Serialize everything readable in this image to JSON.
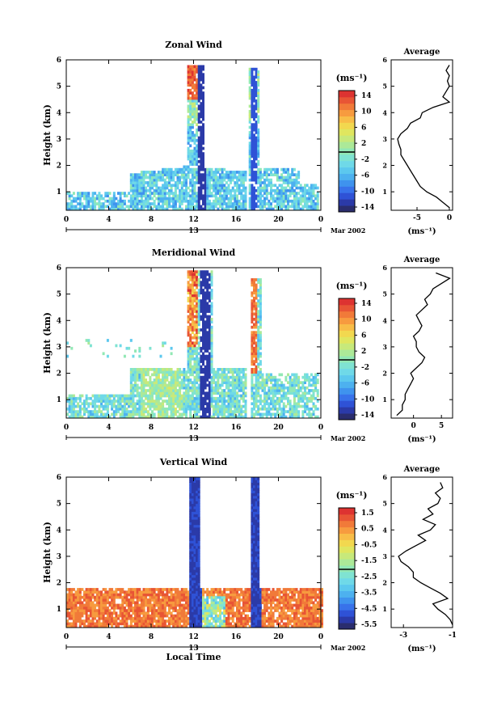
{
  "colormap": [
    "#2a2d6e",
    "#2b3aa8",
    "#2f52d6",
    "#3872ea",
    "#3f93ee",
    "#4db1ef",
    "#5cc8ee",
    "#6fd9e8",
    "#7fe3d2",
    "#92e8b5",
    "#ace998",
    "#c7e97b",
    "#e0e65f",
    "#f2d84f",
    "#f8bd48",
    "#f79b3f",
    "#f17a39",
    "#e85535",
    "#dd3331"
  ],
  "date_label": "Mar 2002",
  "day_label": "13",
  "xlabel": "Local Time",
  "colorbar_unit": "(ms⁻¹)",
  "avg_unit": "(ms⁻¹)",
  "avg_title": "Average",
  "chart_data": [
    {
      "type": "heatmap",
      "title": "Zonal Wind",
      "ylabel": "Height (km)",
      "x_ticks": [
        "0",
        "4",
        "8",
        "12",
        "16",
        "20",
        "0"
      ],
      "xlim": [
        0,
        24
      ],
      "ylim": [
        0.3,
        6
      ],
      "y_ticks": [
        1,
        2,
        3,
        4,
        5,
        6
      ],
      "colorbar": {
        "min": -14,
        "max": 14,
        "ticks": [
          "14",
          "10",
          "6",
          "2",
          "-2",
          "-6",
          "-10",
          "-14"
        ]
      },
      "average": {
        "xlim": [
          -9,
          0.5
        ],
        "x_ticks": [
          "-5",
          "0"
        ],
        "x_tick_values": [
          -5,
          0
        ],
        "height": [
          0.4,
          0.6,
          0.8,
          1.0,
          1.2,
          1.4,
          1.6,
          1.8,
          2.0,
          2.2,
          2.4,
          2.6,
          2.8,
          3.0,
          3.2,
          3.4,
          3.6,
          3.8,
          4.0,
          4.2,
          4.4,
          4.6,
          4.8,
          5.0,
          5.2,
          5.4,
          5.6,
          5.8
        ],
        "value": [
          0,
          -1,
          -2,
          -3.5,
          -4.5,
          -5,
          -5.5,
          -6,
          -6.5,
          -7,
          -7.5,
          -7.5,
          -7.8,
          -8,
          -7.5,
          -6.5,
          -6,
          -4.5,
          -4.2,
          -2.5,
          0,
          -1,
          -0.5,
          0,
          -0.3,
          0,
          -0.5,
          0
        ]
      }
    },
    {
      "type": "heatmap",
      "title": "Meridional Wind",
      "ylabel": "Height (km)",
      "x_ticks": [
        "0",
        "4",
        "8",
        "12",
        "16",
        "20",
        "0"
      ],
      "xlim": [
        0,
        24
      ],
      "ylim": [
        0.3,
        6
      ],
      "y_ticks": [
        1,
        2,
        3,
        4,
        5,
        6
      ],
      "colorbar": {
        "min": -14,
        "max": 14,
        "ticks": [
          "14",
          "10",
          "6",
          "2",
          "-2",
          "-6",
          "-10",
          "-14"
        ]
      },
      "average": {
        "xlim": [
          -4,
          7
        ],
        "x_ticks": [
          "0",
          "5"
        ],
        "x_tick_values": [
          0,
          5
        ],
        "height": [
          0.4,
          0.6,
          0.8,
          1.0,
          1.2,
          1.4,
          1.6,
          1.8,
          2.0,
          2.2,
          2.4,
          2.6,
          2.8,
          3.0,
          3.2,
          3.4,
          3.6,
          3.8,
          4.0,
          4.2,
          4.4,
          4.6,
          4.8,
          5.0,
          5.2,
          5.4,
          5.6,
          5.8
        ],
        "value": [
          -3,
          -2,
          -2,
          -1.5,
          -1.5,
          -1,
          -0.5,
          0,
          -0.5,
          0.5,
          1.5,
          2,
          1,
          0.5,
          0.5,
          0,
          1,
          1.5,
          1,
          0.5,
          1.5,
          2.5,
          2,
          3,
          3.5,
          5,
          6.5,
          4
        ]
      }
    },
    {
      "type": "heatmap",
      "title": "Vertical Wind",
      "ylabel": "Height (km)",
      "x_ticks": [
        "0",
        "4",
        "8",
        "12",
        "16",
        "20",
        "0"
      ],
      "xlim": [
        0,
        24
      ],
      "ylim": [
        0.3,
        6
      ],
      "y_ticks": [
        1,
        2,
        3,
        4,
        5,
        6
      ],
      "colorbar": {
        "min": -5.5,
        "max": 1.5,
        "ticks": [
          "1.5",
          "0.5",
          "-0.5",
          "-1.5",
          "-2.5",
          "-3.5",
          "-4.5",
          "-5.5"
        ]
      },
      "average": {
        "xlim": [
          -3.5,
          -1
        ],
        "x_ticks": [
          "-3",
          "-1"
        ],
        "x_tick_values": [
          -3,
          -1
        ],
        "height": [
          0.4,
          0.6,
          0.8,
          1.0,
          1.2,
          1.4,
          1.6,
          1.8,
          2.0,
          2.2,
          2.4,
          2.6,
          2.8,
          3.0,
          3.2,
          3.4,
          3.6,
          3.8,
          4.0,
          4.2,
          4.4,
          4.6,
          4.8,
          5.0,
          5.2,
          5.4,
          5.6,
          5.8
        ],
        "value": [
          -1,
          -1.1,
          -1.3,
          -1.6,
          -1.8,
          -1.2,
          -1.5,
          -1.9,
          -2.3,
          -2.6,
          -2.6,
          -2.8,
          -3.1,
          -3.2,
          -2.9,
          -2.5,
          -2.1,
          -2.4,
          -1.9,
          -1.7,
          -2.2,
          -1.8,
          -2.0,
          -1.6,
          -1.5,
          -1.7,
          -1.4,
          -1.5
        ]
      }
    }
  ]
}
